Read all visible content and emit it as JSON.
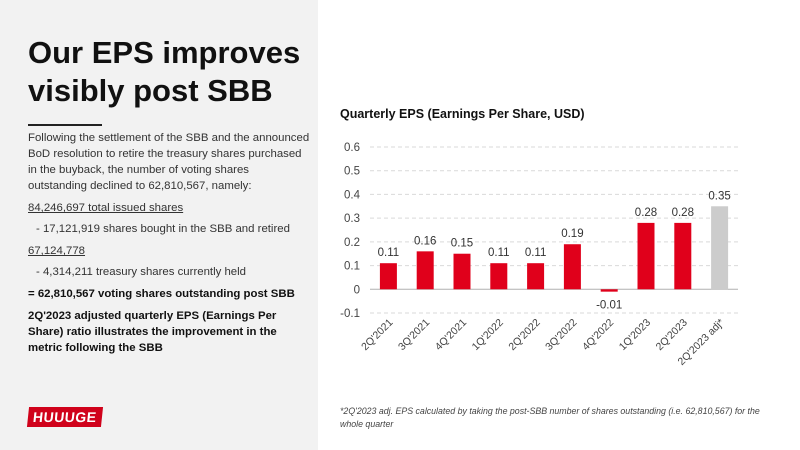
{
  "heading": "Our EPS improves visibly post SBB",
  "paragraph": "Following the settlement of the SBB and the announced BoD resolution to retire the treasury shares purchased in the buyback, the number of voting shares outstanding declined to 62,810,567, namely:",
  "line1": "84,246,697 total issued shares",
  "line2": "-   17,121,919 shares bought in the SBB and retired",
  "line3": "67,124,778",
  "line4": "-   4,314,211 treasury shares currently held",
  "line5": "= 62,810,567 voting shares outstanding post SBB",
  "line6": "2Q'2023 adjusted quarterly EPS (Earnings Per Share) ratio illustrates the improvement in the metric following the SBB",
  "logo": "HUUUGE",
  "footnote": "*2Q'2023 adj. EPS calculated by taking the post-SBB number of shares outstanding (i.e. 62,810,567) for the whole quarter",
  "colors": {
    "bar": "#e0001b",
    "adjusted_bar": "#cccccc"
  },
  "chart_data": {
    "type": "bar",
    "title": "Quarterly EPS (Earnings Per Share, USD)",
    "categories": [
      "2Q'2021",
      "3Q'2021",
      "4Q'2021",
      "1Q'2022",
      "2Q'2022",
      "3Q'2022",
      "4Q'2022",
      "1Q'2023",
      "2Q'2023",
      "2Q'2023 adj*"
    ],
    "values": [
      0.11,
      0.16,
      0.15,
      0.11,
      0.11,
      0.19,
      -0.01,
      0.28,
      0.28,
      0.35
    ],
    "labels": [
      "0.11",
      "0.16",
      "0.15",
      "0.11",
      "0.11",
      "0.19",
      "-0.01",
      "0.28",
      "0.28",
      "0.35"
    ],
    "ylim": [
      -0.1,
      0.6
    ],
    "yticks": [
      "-0.1",
      "0",
      "0.1",
      "0.2",
      "0.3",
      "0.4",
      "0.5",
      "0.6"
    ],
    "grid": true,
    "legend": "none"
  }
}
